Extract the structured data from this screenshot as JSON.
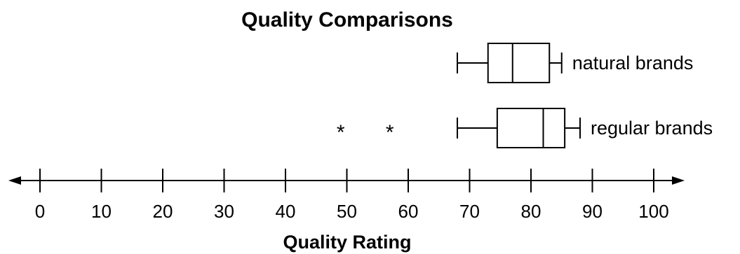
{
  "chart_data": {
    "type": "boxplot",
    "title": "Quality Comparisons",
    "xlabel": "Quality Rating",
    "ylabel": "",
    "xlim": [
      0,
      100
    ],
    "x_ticks": [
      0,
      10,
      20,
      30,
      40,
      50,
      60,
      70,
      80,
      90,
      100
    ],
    "grid": false,
    "series": [
      {
        "name": "natural brands",
        "min": 68,
        "q1": 73,
        "median": 77,
        "q3": 83,
        "max": 85,
        "outliers": []
      },
      {
        "name": "regular brands",
        "min": 68,
        "q1": 74.5,
        "median": 82,
        "q3": 85.5,
        "max": 88,
        "outliers": [
          49,
          57
        ]
      }
    ],
    "outlier_marker": "*"
  }
}
